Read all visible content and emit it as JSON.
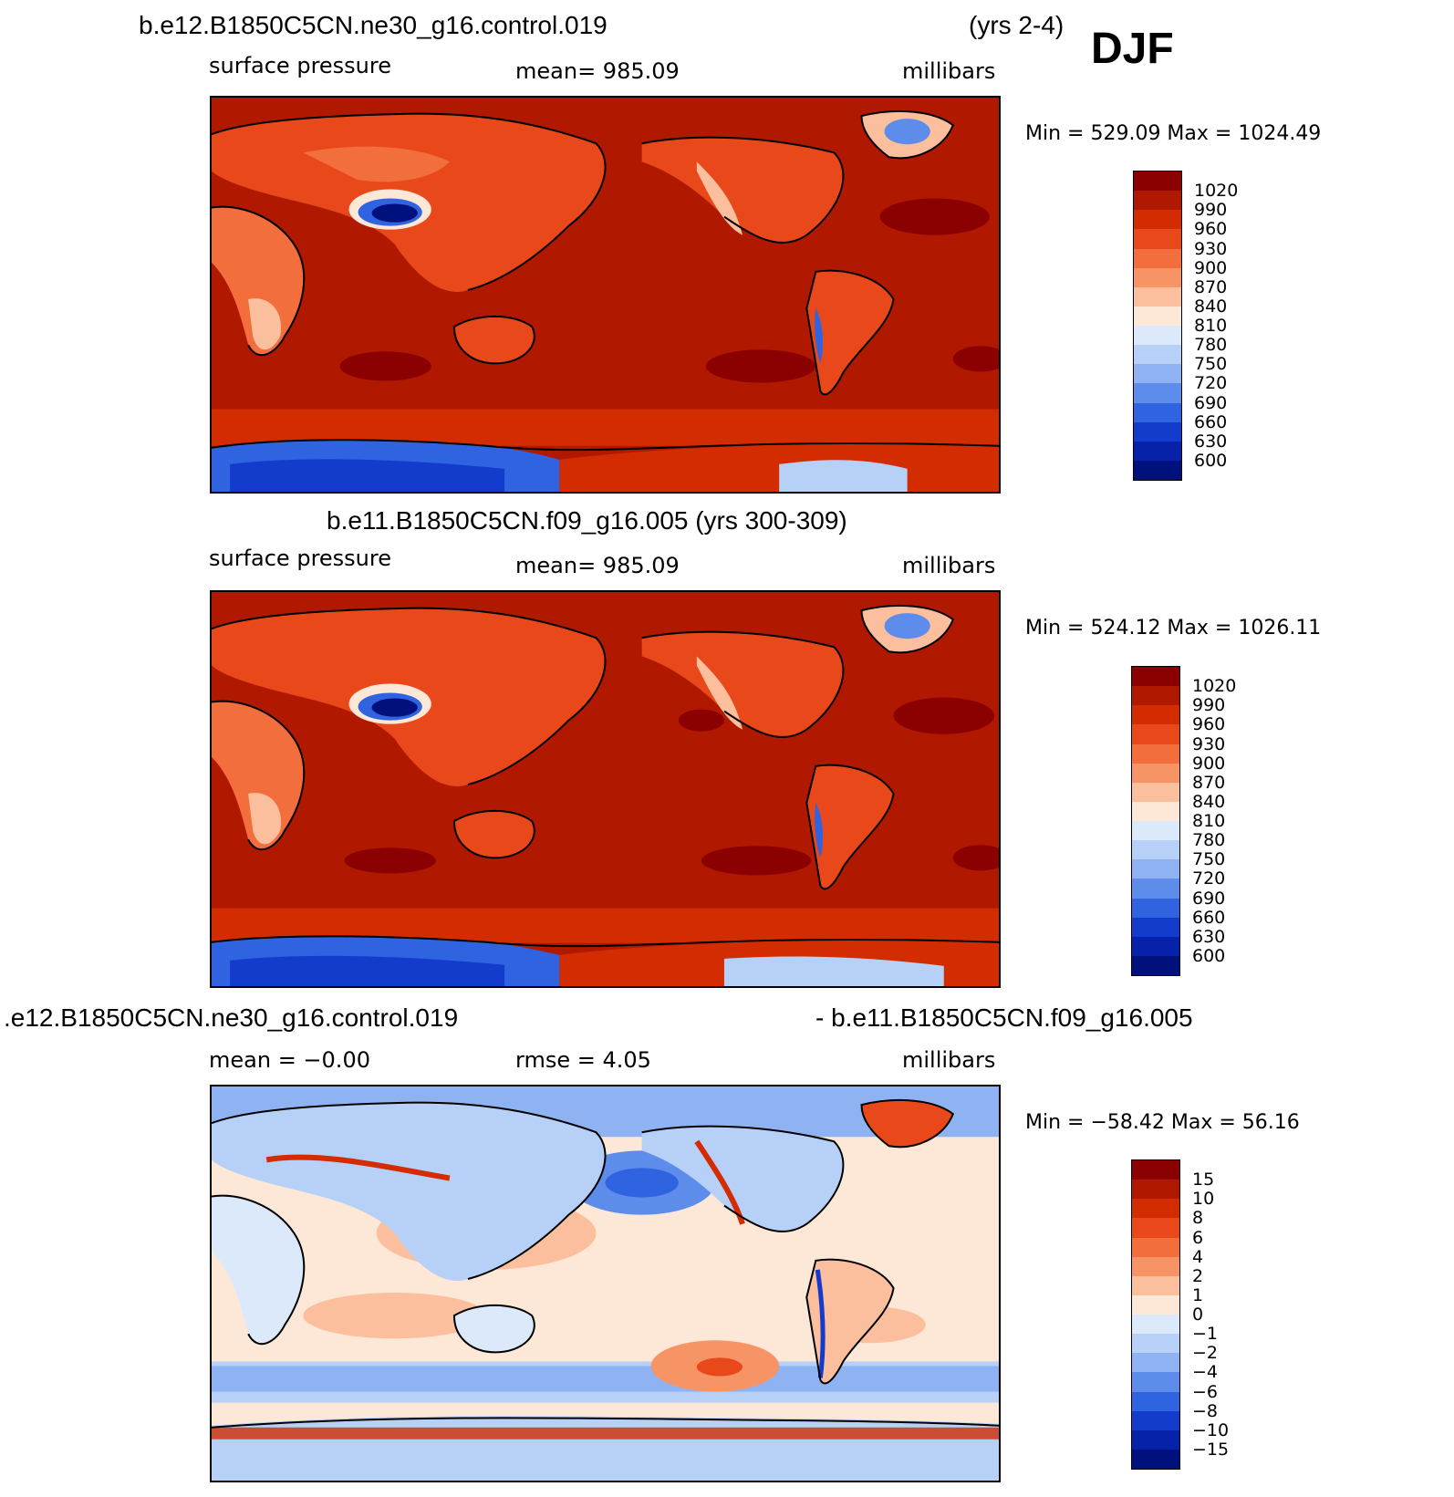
{
  "header": {
    "title_top": "b.e12.B1850C5CN.ne30_g16.control.019",
    "years_top": "(yrs 2-4)",
    "season": "DJF",
    "title_mid": "b.e11.B1850C5CN.f09_g16.005 (yrs 300-309)",
    "title_diff_left": ".e12.B1850C5CN.ne30_g16.control.019",
    "title_diff_right": "- b.e11.B1850C5CN.f09_g16.005"
  },
  "panels": [
    {
      "variable": "surface pressure",
      "stat": "mean=  985.09",
      "units": "millibars",
      "minmax": "Min  =  529.09  Max  =  1024.49"
    },
    {
      "variable": "surface pressure",
      "stat": "mean=  985.09",
      "units": "millibars",
      "minmax": "Min  =  524.12  Max  =  1026.11"
    },
    {
      "mean": "mean  =    −0.00",
      "rmse": "rmse  =     4.05",
      "units": "millibars",
      "minmax": "Min  =  −58.42  Max  =   56.16"
    }
  ],
  "colorbars": {
    "pressure": {
      "labels": [
        "1020",
        "990",
        "960",
        "930",
        "900",
        "870",
        "840",
        "810",
        "780",
        "750",
        "720",
        "690",
        "660",
        "630",
        "600"
      ],
      "colors": [
        "#8b0000",
        "#b01900",
        "#d22c00",
        "#e8481a",
        "#f26e3c",
        "#f79466",
        "#fbbf9e",
        "#fde8d8",
        "#dbe9fb",
        "#b7d0f7",
        "#8fb3f2",
        "#5e8ceb",
        "#2f63e0",
        "#133ccc",
        "#0622a8",
        "#00107c"
      ]
    },
    "difference": {
      "labels": [
        "15",
        "10",
        "8",
        "6",
        "4",
        "2",
        "1",
        "0",
        "−1",
        "−2",
        "−4",
        "−6",
        "−8",
        "−10",
        "−15"
      ],
      "colors": [
        "#8b0000",
        "#b01900",
        "#d22c00",
        "#e8481a",
        "#f26e3c",
        "#f79466",
        "#fbbf9e",
        "#fde8d8",
        "#dbe9fb",
        "#b7d0f7",
        "#8fb3f2",
        "#5e8ceb",
        "#2f63e0",
        "#133ccc",
        "#0622a8",
        "#00107c"
      ]
    }
  },
  "colors": {
    "ocean_pressure": "#b01900",
    "high_pressure": "#8b0000",
    "antarctic_low": "#2f63e0",
    "diff_ocean": "#fde8d8",
    "diff_warm": "#f79466",
    "diff_cool": "#8fb3f2"
  }
}
